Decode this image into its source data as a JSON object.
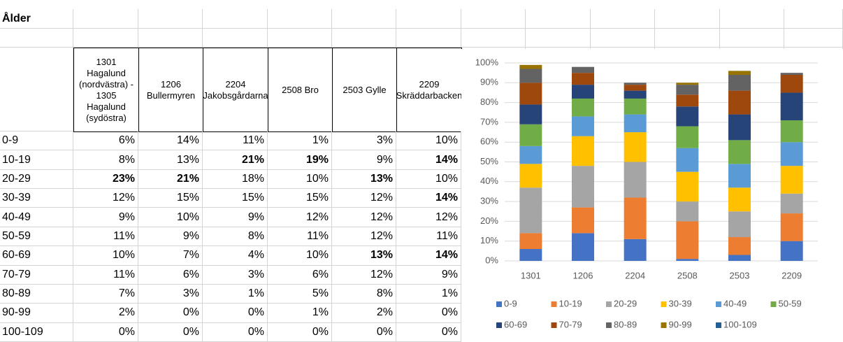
{
  "table": {
    "title": "Ålder",
    "headers": [
      "1301 Hagalund (nordvästra) - 1305 Hagalund (sydöstra)",
      "1206 Bullermyren",
      "2204 Jakobsgårdarna",
      "2508 Bro",
      "2503 Gylle",
      "2209 Skräddarbacken"
    ],
    "rows": [
      {
        "label": "0-9",
        "cells": [
          "6%",
          "14%",
          "11%",
          "1%",
          "3%",
          "10%"
        ]
      },
      {
        "label": "10-19",
        "cells": [
          "8%",
          "13%",
          "21%",
          "19%",
          "9%",
          "14%"
        ],
        "bold": [
          2,
          3,
          5
        ]
      },
      {
        "label": "20-29",
        "cells": [
          "23%",
          "21%",
          "18%",
          "10%",
          "13%",
          "10%"
        ],
        "bold": [
          0,
          1,
          4
        ]
      },
      {
        "label": "30-39",
        "cells": [
          "12%",
          "15%",
          "15%",
          "15%",
          "12%",
          "14%"
        ],
        "bold": [
          5
        ]
      },
      {
        "label": "40-49",
        "cells": [
          "9%",
          "10%",
          "9%",
          "12%",
          "12%",
          "12%"
        ]
      },
      {
        "label": "50-59",
        "cells": [
          "11%",
          "9%",
          "8%",
          "11%",
          "12%",
          "11%"
        ]
      },
      {
        "label": "60-69",
        "cells": [
          "10%",
          "7%",
          "4%",
          "10%",
          "13%",
          "14%"
        ],
        "bold": [
          4,
          5
        ]
      },
      {
        "label": "70-79",
        "cells": [
          "11%",
          "6%",
          "3%",
          "6%",
          "12%",
          "9%"
        ]
      },
      {
        "label": "80-89",
        "cells": [
          "7%",
          "3%",
          "1%",
          "5%",
          "8%",
          "1%"
        ]
      },
      {
        "label": "90-99",
        "cells": [
          "2%",
          "0%",
          "0%",
          "1%",
          "2%",
          "0%"
        ]
      },
      {
        "label": "100-109",
        "cells": [
          "0%",
          "0%",
          "0%",
          "0%",
          "0%",
          "0%"
        ]
      }
    ]
  },
  "chart_data": {
    "type": "stacked_bar",
    "categories": [
      "1301",
      "1206",
      "2204",
      "2508",
      "2503",
      "2209"
    ],
    "ylim": [
      0,
      100
    ],
    "yticks": [
      {
        "value": 0,
        "label": "0%"
      },
      {
        "value": 10,
        "label": "10%"
      },
      {
        "value": 20,
        "label": "20%"
      },
      {
        "value": 30,
        "label": "30%"
      },
      {
        "value": 40,
        "label": "40%"
      },
      {
        "value": 50,
        "label": "50%"
      },
      {
        "value": 60,
        "label": "60%"
      },
      {
        "value": 70,
        "label": "70%"
      },
      {
        "value": 80,
        "label": "80%"
      },
      {
        "value": 90,
        "label": "90%"
      },
      {
        "value": 100,
        "label": "100%"
      }
    ],
    "grid": true,
    "legend": "bottom",
    "series": [
      {
        "name": "0-9",
        "color": "#4472c4",
        "values": [
          6,
          14,
          11,
          1,
          3,
          10
        ]
      },
      {
        "name": "10-19",
        "color": "#ed7d31",
        "values": [
          8,
          13,
          21,
          19,
          9,
          14
        ]
      },
      {
        "name": "20-29",
        "color": "#a5a5a5",
        "values": [
          23,
          21,
          18,
          10,
          13,
          10
        ]
      },
      {
        "name": "30-39",
        "color": "#ffc000",
        "values": [
          12,
          15,
          15,
          15,
          12,
          14
        ]
      },
      {
        "name": "40-49",
        "color": "#5b9bd5",
        "values": [
          9,
          10,
          9,
          12,
          12,
          12
        ]
      },
      {
        "name": "50-59",
        "color": "#70ad47",
        "values": [
          11,
          9,
          8,
          11,
          12,
          11
        ]
      },
      {
        "name": "60-69",
        "color": "#264478",
        "values": [
          10,
          7,
          4,
          10,
          13,
          14
        ]
      },
      {
        "name": "70-79",
        "color": "#9e480e",
        "values": [
          11,
          6,
          3,
          6,
          12,
          9
        ]
      },
      {
        "name": "80-89",
        "color": "#636363",
        "values": [
          7,
          3,
          1,
          5,
          8,
          1
        ]
      },
      {
        "name": "90-99",
        "color": "#997300",
        "values": [
          2,
          0,
          0,
          1,
          2,
          0
        ]
      },
      {
        "name": "100-109",
        "color": "#255e91",
        "values": [
          0,
          0,
          0,
          0,
          0,
          0
        ]
      }
    ]
  }
}
